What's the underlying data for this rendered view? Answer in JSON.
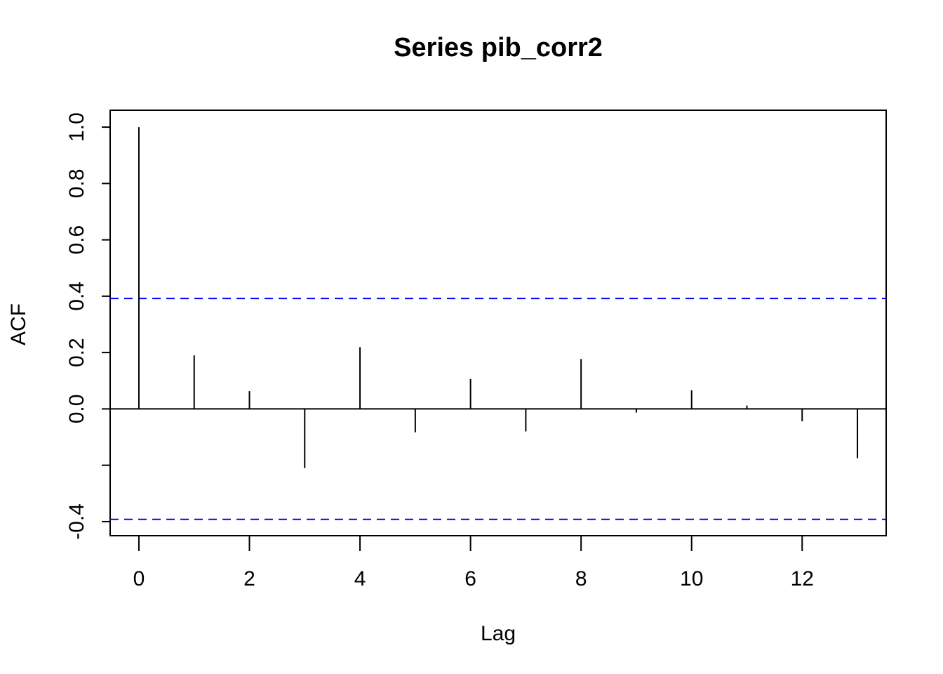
{
  "chart_data": {
    "type": "bar",
    "title": "Series  pib_corr2",
    "xlabel": "Lag",
    "ylabel": "ACF",
    "xlim": [
      -0.52,
      13.52
    ],
    "ylim": [
      -0.45,
      1.06
    ],
    "x_ticks": [
      0,
      2,
      4,
      6,
      8,
      10,
      12
    ],
    "x_tick_labels": [
      "0",
      "2",
      "4",
      "6",
      "8",
      "10",
      "12"
    ],
    "y_ticks": [
      -0.4,
      -0.2,
      0.0,
      0.2,
      0.4,
      0.6,
      0.8,
      1.0
    ],
    "y_tick_labels": [
      "-0.4",
      "",
      "0.0",
      "0.2",
      "0.4",
      "0.6",
      "0.8",
      "1.0"
    ],
    "x": [
      0,
      1,
      2,
      3,
      4,
      5,
      6,
      7,
      8,
      9,
      10,
      11,
      12,
      13
    ],
    "values": [
      1.0,
      0.19,
      0.063,
      -0.21,
      0.219,
      -0.083,
      0.106,
      -0.08,
      0.177,
      -0.013,
      0.066,
      0.012,
      -0.044,
      -0.175
    ],
    "confidence_band": 0.392,
    "colors": {
      "bars": "#000000",
      "confidence_band": "#0000ff",
      "axes": "#000000"
    },
    "grid": false
  }
}
